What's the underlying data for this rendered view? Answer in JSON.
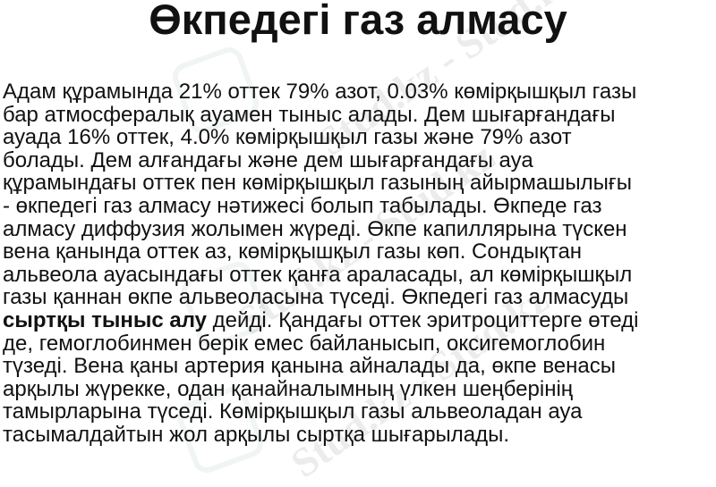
{
  "title": "Өкпедегі газ алмасу",
  "watermark": "Stud.kz",
  "lines": [
    "Адам құрамында 21% оттек 79% азот, 0.03% көмірқышқыл газы",
    "бар атмосфералық ауамен тыныс алады. Дем шығарғандағы",
    "ауада 16% оттек, 4.0% көмірқышқыл газы және 79% азот",
    "болады. Дем алғандағы және дем шығарғандағы ауа",
    "құрамындағы оттек пен көмірқышқыл газының айырмашылығы",
    "- өкпедегі газ алмасу нәтижесі болып табылады. Өкпеде газ",
    "алмасу диффузия жолымен жүреді. Өкпе капиллярына түскен",
    "вена қанында оттек аз, көмірқышқыл газы көп. Сондықтан",
    "альвеола ауасындағы оттек қанға араласады, ал көмірқышқыл",
    "газы қаннан өкпе альвеоласына түседі. Өкпедегі газ алмасуды",
    "",
    "де, гемоглобинмен берік емес байланысып, оксигемоглобин",
    "түзеді. Вена қаны артерия қанына айналады да, өкпе венасы",
    "арқылы жүрекке, одан қанайналымның үлкен шеңберінің",
    "тамырларына түседі. Көмірқышқыл газы альвеоладан ауа",
    "тасымалдайтын жол арқылы сыртқа шығарылады."
  ],
  "bold_term": "сыртқы тыныс алу",
  "bold_line_rest": " дейді. Қандағы оттек эритроциттерге өтеді"
}
